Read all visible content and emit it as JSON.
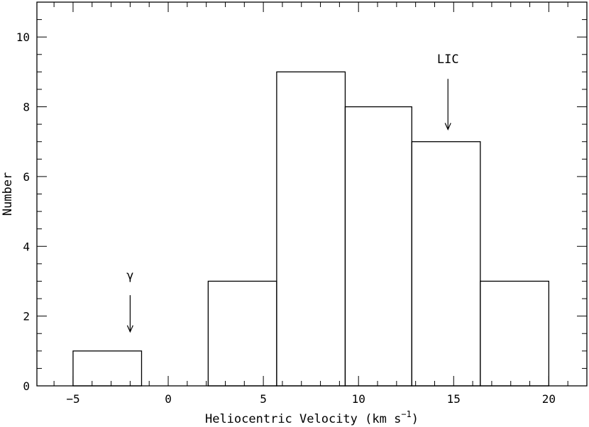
{
  "chart_data": {
    "type": "bar",
    "xlabel": "Heliocentric Velocity (km s",
    "xlabel_sup": "−1",
    "xlabel_tail": ")",
    "ylabel": "Number",
    "xlim": [
      -6.9,
      22
    ],
    "ylim": [
      0,
      11
    ],
    "xticks": [
      -5,
      0,
      5,
      10,
      15,
      20
    ],
    "xtick_labels": [
      "−5",
      "0",
      "5",
      "10",
      "15",
      "20"
    ],
    "yticks": [
      0,
      2,
      4,
      6,
      8,
      10
    ],
    "ytick_labels": [
      "0",
      "2",
      "4",
      "6",
      "8",
      "10"
    ],
    "bins": [
      {
        "x0": -5.0,
        "x1": -1.4,
        "count": 1
      },
      {
        "x0": -1.4,
        "x1": 2.1,
        "count": 0
      },
      {
        "x0": 2.1,
        "x1": 5.7,
        "count": 3
      },
      {
        "x0": 5.7,
        "x1": 9.3,
        "count": 9
      },
      {
        "x0": 9.3,
        "x1": 12.8,
        "count": 8
      },
      {
        "x0": 12.8,
        "x1": 16.4,
        "count": 7
      },
      {
        "x0": 16.4,
        "x1": 20.0,
        "count": 3
      }
    ],
    "annotations": [
      {
        "label": "γ",
        "x": -2.0,
        "arrow_from_y": 2.6,
        "arrow_to_y": 1.55,
        "text_y": 3.05
      },
      {
        "label": "LIC",
        "x": 14.7,
        "arrow_from_y": 8.8,
        "arrow_to_y": 7.35,
        "text_y": 9.25
      }
    ],
    "grid": false,
    "legend": "none"
  }
}
